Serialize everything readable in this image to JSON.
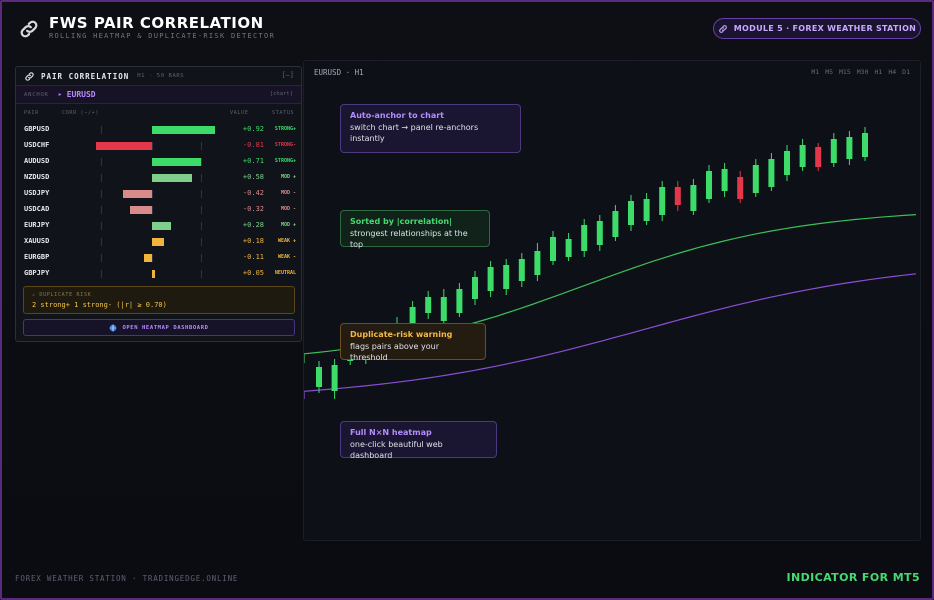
{
  "header": {
    "logo_icon": "link-icon",
    "title": "FWS PAIR CORRELATION",
    "subtitle": "ROLLING HEATMAP & DUPLICATE-RISK DETECTOR",
    "module_badge": "MODULE 5 · FOREX WEATHER STATION"
  },
  "panel": {
    "title": "PAIR CORRELATION",
    "meta": "H1 · 50 BARS",
    "collapse_label": "[–]",
    "anchor_label": "ANCHOR",
    "anchor_arrow": "▸",
    "anchor_value": "EURUSD",
    "anchor_source": "[chart]",
    "columns": {
      "pair": "PAIR",
      "corr": "CORR (−/+)",
      "value": "VALUE",
      "status": "STATUS"
    },
    "rows": [
      {
        "pair": "GBPUSD",
        "value": 0.92,
        "value_text": "+0.92",
        "status": "STRONG+",
        "kind": "strong-pos"
      },
      {
        "pair": "USDCHF",
        "value": -0.81,
        "value_text": "-0.81",
        "status": "STRONG-",
        "kind": "strong-neg"
      },
      {
        "pair": "AUDUSD",
        "value": 0.71,
        "value_text": "+0.71",
        "status": "STRONG+",
        "kind": "strong-pos"
      },
      {
        "pair": "NZDUSD",
        "value": 0.58,
        "value_text": "+0.58",
        "status": "MOD +",
        "kind": "mod-pos"
      },
      {
        "pair": "USDJPY",
        "value": -0.42,
        "value_text": "-0.42",
        "status": "MOD -",
        "kind": "mod-neg"
      },
      {
        "pair": "USDCAD",
        "value": -0.32,
        "value_text": "-0.32",
        "status": "MOD -",
        "kind": "mod-neg"
      },
      {
        "pair": "EURJPY",
        "value": 0.28,
        "value_text": "+0.28",
        "status": "MOD +",
        "kind": "mod-pos"
      },
      {
        "pair": "XAUUSD",
        "value": 0.18,
        "value_text": "+0.18",
        "status": "WEAK +",
        "kind": "weak"
      },
      {
        "pair": "EURGBP",
        "value": -0.11,
        "value_text": "-0.11",
        "status": "WEAK -",
        "kind": "weak"
      },
      {
        "pair": "GBPJPY",
        "value": 0.05,
        "value_text": "+0.05",
        "status": "NEUTRAL",
        "kind": "weak"
      }
    ],
    "warning_title": "⚠ DUPLICATE RISK",
    "warning_text": "2 strong+ 1 strong- (|r| ≥ 0.70)",
    "heatmap_button": "OPEN HEATMAP DASHBOARD",
    "heatmap_icon": "globe-icon"
  },
  "chart": {
    "symbol": "EURUSD · H1",
    "timeframes": [
      "M1",
      "M5",
      "M15",
      "M30",
      "H1",
      "H4",
      "D1"
    ],
    "callouts": {
      "auto_anchor": {
        "title": "Auto-anchor to chart",
        "text": "switch chart → panel re-anchors instantly"
      },
      "sorted": {
        "title": "Sorted by |correlation|",
        "text": "strongest relationships at the top"
      },
      "duplicate": {
        "title": "Duplicate-risk warning",
        "text": "flags pairs above your threshold"
      },
      "heatmap": {
        "title": "Full N×N heatmap",
        "text": "one-click beautiful web dashboard"
      }
    },
    "colors": {
      "bull": "#3ddc6a",
      "bear": "#e2384a",
      "ma_fast": "#3bbf58",
      "ma_slow": "#8a4fd6"
    }
  },
  "footer": {
    "left": "FOREX WEATHER STATION · TRADINGEDGE.ONLINE",
    "right": "INDICATOR FOR MT5"
  },
  "colors": {
    "strong_pos": "#3ddc6a",
    "strong_neg": "#e2384a",
    "mod_pos": "#7fcf8a",
    "mod_neg": "#d98a8a",
    "weak": "#f0b43c"
  }
}
